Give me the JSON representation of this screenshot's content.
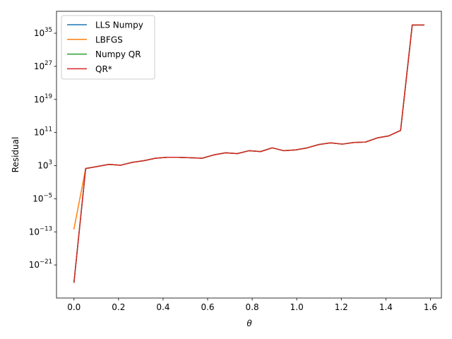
{
  "chart_data": {
    "type": "line",
    "xlabel": "θ",
    "ylabel": "Residual",
    "yscale": "log",
    "xlim": [
      -0.0785,
      1.6493
    ],
    "ylim_log10": [
      -29.0,
      40.3
    ],
    "grid": false,
    "legend": "top-left",
    "x_ticks": [
      {
        "value": 0.0,
        "label": "0.0"
      },
      {
        "value": 0.2,
        "label": "0.2"
      },
      {
        "value": 0.4,
        "label": "0.4"
      },
      {
        "value": 0.6,
        "label": "0.6"
      },
      {
        "value": 0.8,
        "label": "0.8"
      },
      {
        "value": 1.0,
        "label": "1.0"
      },
      {
        "value": 1.2,
        "label": "1.2"
      },
      {
        "value": 1.4,
        "label": "1.4"
      },
      {
        "value": 1.6,
        "label": "1.6"
      }
    ],
    "y_ticks": [
      {
        "exp": 35,
        "base": "10",
        "sup": "35"
      },
      {
        "exp": 27,
        "base": "10",
        "sup": "27"
      },
      {
        "exp": 19,
        "base": "10",
        "sup": "19"
      },
      {
        "exp": 11,
        "base": "10",
        "sup": "11"
      },
      {
        "exp": 3,
        "base": "10",
        "sup": "3"
      },
      {
        "exp": -5,
        "base": "10",
        "sup": "−5"
      },
      {
        "exp": -13,
        "base": "10",
        "sup": "−13"
      },
      {
        "exp": -21,
        "base": "10",
        "sup": "−21"
      }
    ],
    "x": [
      0.0,
      0.0524,
      0.1047,
      0.1571,
      0.2094,
      0.2618,
      0.3142,
      0.3665,
      0.4189,
      0.4712,
      0.5236,
      0.576,
      0.6283,
      0.6807,
      0.733,
      0.7854,
      0.8378,
      0.8901,
      0.9425,
      0.9948,
      1.0472,
      1.0996,
      1.1519,
      1.2043,
      1.2566,
      1.309,
      1.3614,
      1.4137,
      1.4661,
      1.5184,
      1.5708
    ],
    "series": [
      {
        "name": "LLS Numpy",
        "color": "#1f77b4",
        "log10_values": [
          -25.2,
          2.3,
          2.8,
          3.3,
          3.1,
          3.8,
          4.2,
          4.8,
          5.0,
          5.0,
          4.9,
          4.8,
          5.6,
          6.1,
          5.9,
          6.6,
          6.4,
          7.3,
          6.6,
          6.8,
          7.3,
          8.1,
          8.5,
          8.2,
          8.6,
          8.7,
          9.7,
          10.2,
          11.5,
          37.0,
          37.0
        ],
        "x_override": [
          0.0,
          0.0524,
          0.1047,
          0.1571,
          0.2094,
          0.2618,
          0.3142,
          0.3665,
          0.4189,
          0.4712,
          0.5236,
          0.576,
          0.6283,
          0.6807,
          0.733,
          0.7854,
          0.8378,
          0.8901,
          0.9425,
          0.9948,
          1.0472,
          1.0996,
          1.1519,
          1.2043,
          1.2566,
          1.309,
          1.3614,
          1.4137,
          1.4661,
          1.5184,
          1.5708
        ]
      },
      {
        "name": "LBFGS",
        "color": "#ff7f0e",
        "log10_values": [
          -12.3,
          2.3,
          2.8,
          3.3,
          3.1,
          3.8,
          4.2,
          4.8,
          5.0,
          5.0,
          4.9,
          4.8,
          5.6,
          6.1,
          5.9,
          6.6,
          6.4,
          7.3,
          6.6,
          6.8,
          7.3,
          8.1,
          8.5,
          8.2,
          8.6,
          8.7,
          9.7,
          10.2,
          11.5,
          37.0,
          37.0
        ]
      },
      {
        "name": "Numpy QR",
        "color": "#2ca02c",
        "log10_values": [
          -25.2,
          2.3,
          2.8,
          3.3,
          3.1,
          3.8,
          4.2,
          4.8,
          5.0,
          5.0,
          4.9,
          4.8,
          5.6,
          6.1,
          5.9,
          6.6,
          6.4,
          7.3,
          6.6,
          6.8,
          7.3,
          8.1,
          8.5,
          8.2,
          8.6,
          8.7,
          9.7,
          10.2,
          11.5,
          37.0,
          37.0
        ]
      },
      {
        "name": "QR*",
        "color": "#d62728",
        "log10_values": [
          -25.2,
          2.3,
          2.8,
          3.3,
          3.1,
          3.8,
          4.2,
          4.8,
          5.0,
          5.0,
          4.9,
          4.8,
          5.6,
          6.1,
          5.9,
          6.6,
          6.4,
          7.3,
          6.6,
          6.8,
          7.3,
          8.1,
          8.5,
          8.2,
          8.6,
          8.7,
          9.7,
          10.2,
          11.5,
          37.0,
          37.0
        ]
      }
    ]
  }
}
